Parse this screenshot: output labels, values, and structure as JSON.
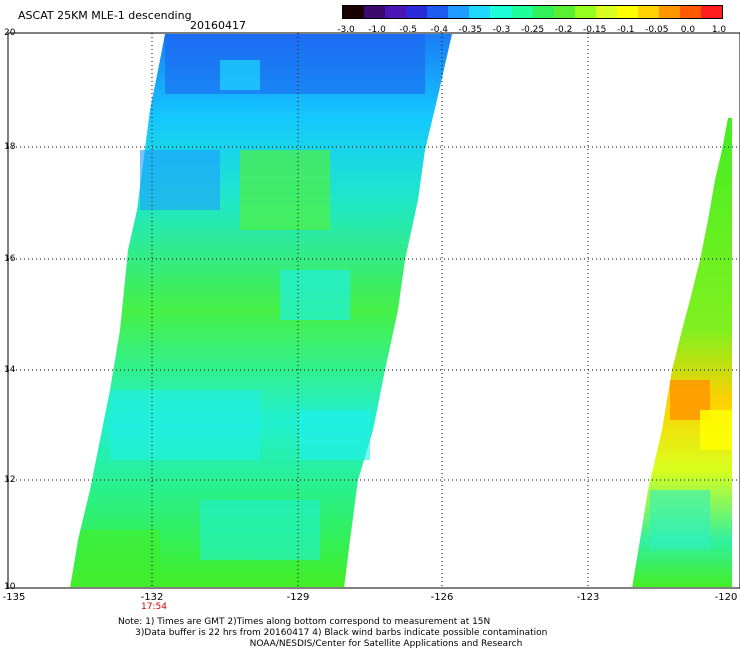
{
  "header": {
    "title": "ASCAT 25KM MLE-1 descending",
    "date": "20160417"
  },
  "colorbar": {
    "labels": [
      "-3.0",
      "-1.0",
      "-0.5",
      "-0.4",
      "-0.35",
      "-0.3",
      "-0.25",
      "-0.2",
      "-0.15",
      "-0.1",
      "-0.05",
      "0.0",
      "1.0"
    ],
    "colors": [
      "#1a0000",
      "#3c0a6e",
      "#4b12b4",
      "#2a2ad8",
      "#1e5cf0",
      "#1e9cff",
      "#1ed8ff",
      "#1effd8",
      "#1eff9c",
      "#32f05a",
      "#5af032",
      "#96ff1e",
      "#d8ff1e",
      "#ffff00",
      "#ffd200",
      "#ff9600",
      "#ff5a00",
      "#ff1e1e"
    ]
  },
  "axes": {
    "lat_labels": [
      "20",
      "18",
      "16",
      "14",
      "12",
      "10"
    ],
    "lon_labels": [
      "-135",
      "-132",
      "-129",
      "-126",
      "-123",
      "-120"
    ],
    "time_label": "17:54"
  },
  "notes": {
    "line1": "Note: 1) Times are GMT 2)Times along bottom correspond to measurement at 15N",
    "line2": "      3)Data buffer is 22 hrs from 20160417 4) Black wind barbs indicate possible contamination",
    "line3": "                                              NOAA/NESDIS/Center for Satellite Applications and Research"
  }
}
